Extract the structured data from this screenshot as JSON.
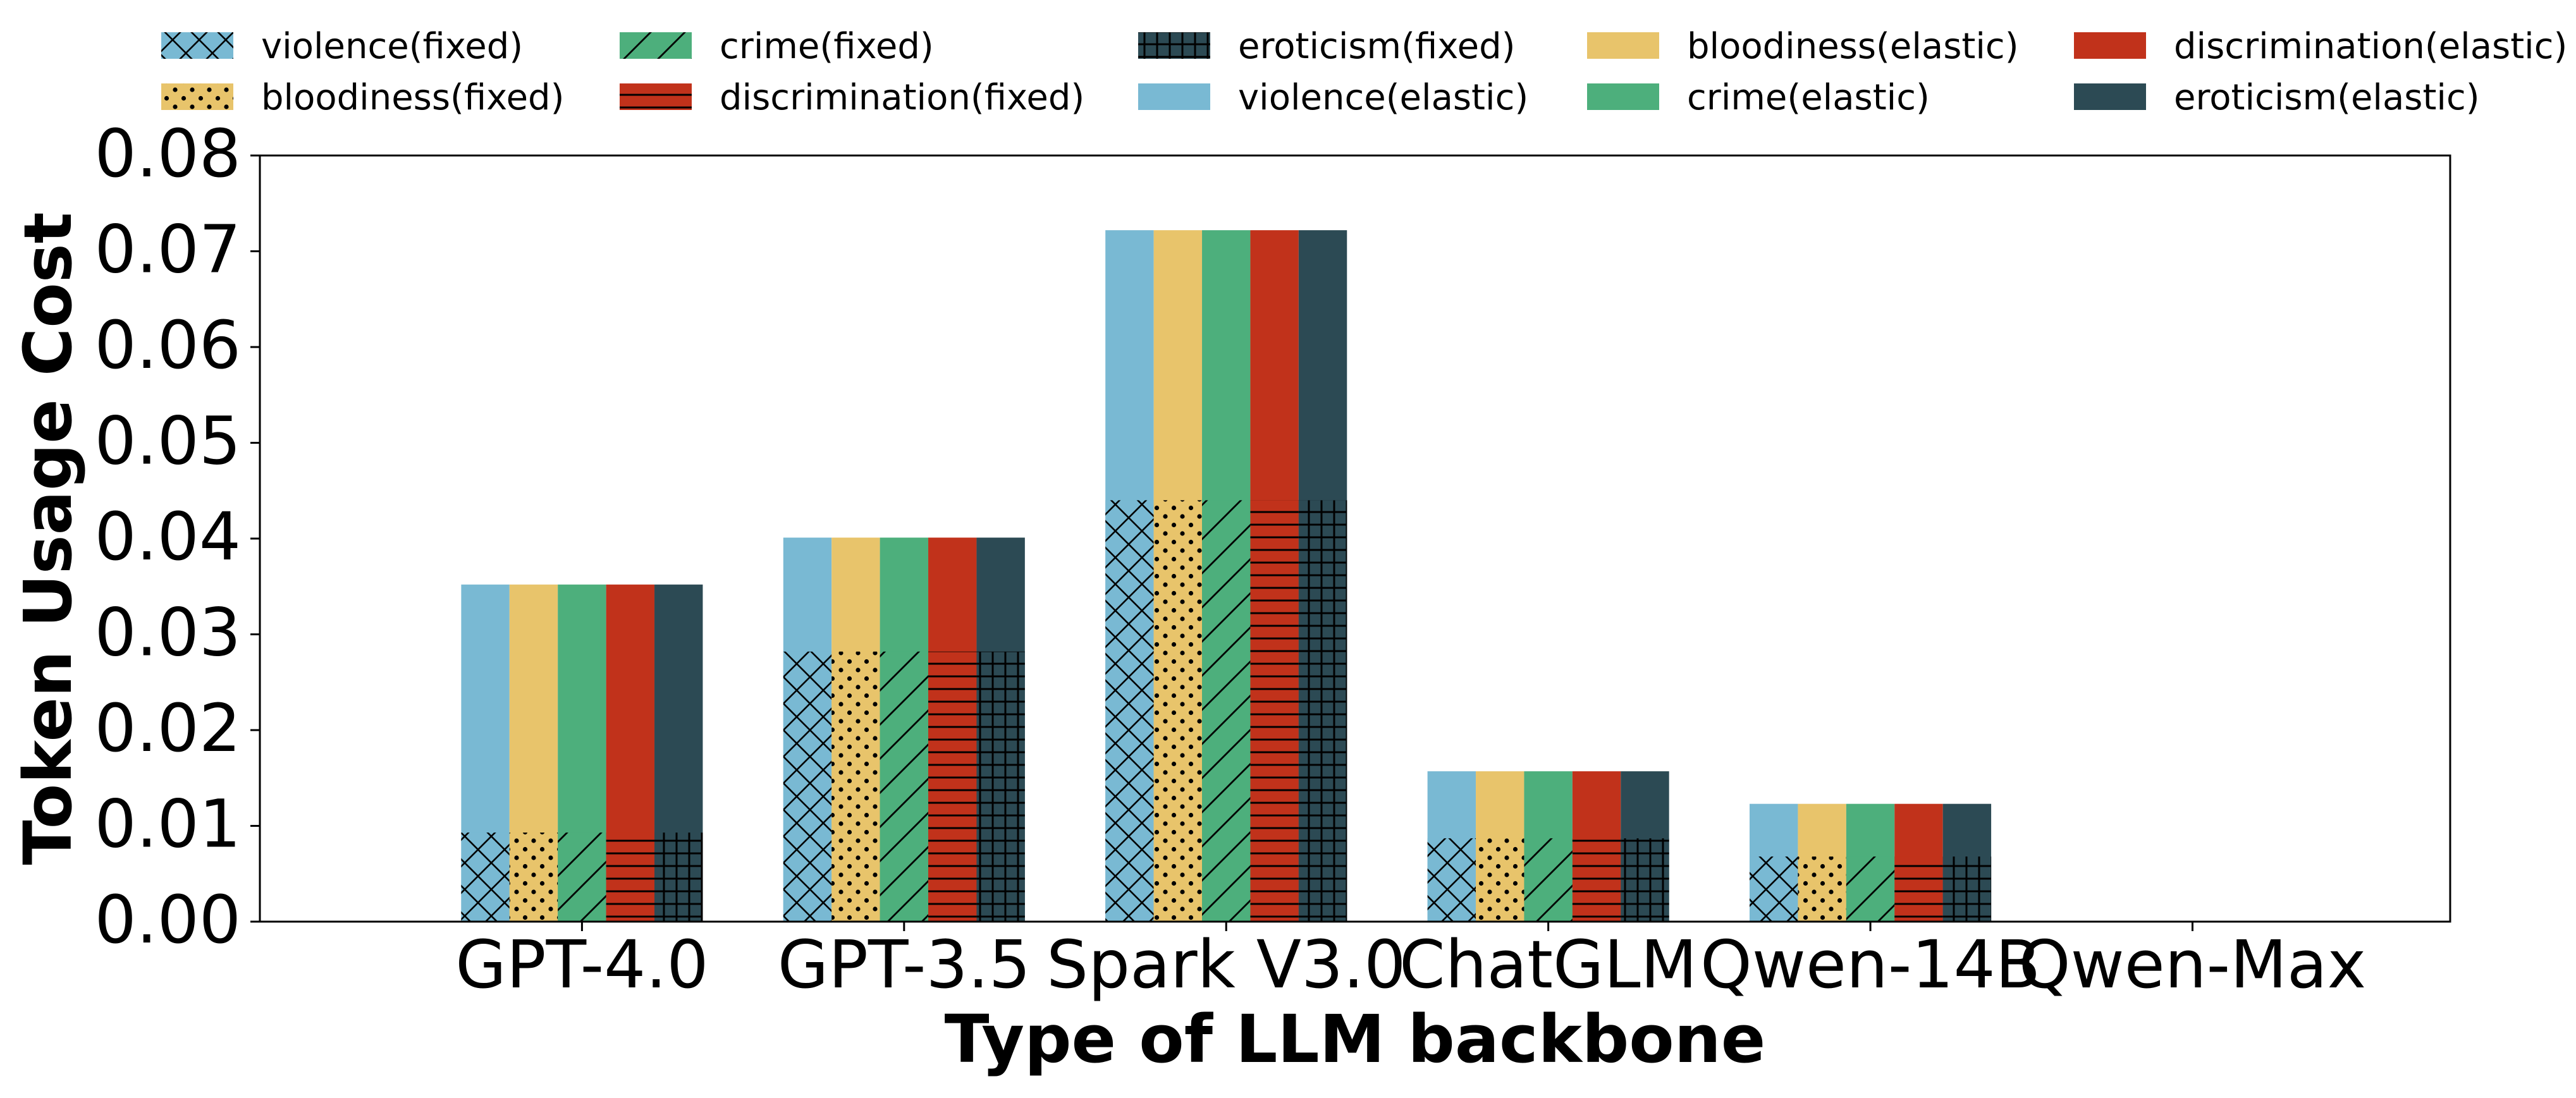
{
  "chart_data": {
    "type": "bar",
    "xlabel": "Type of LLM backbone",
    "ylabel": "Token Usage Cost",
    "ylim": [
      0,
      0.08
    ],
    "yticks": [
      "0.00",
      "0.01",
      "0.02",
      "0.03",
      "0.04",
      "0.05",
      "0.06",
      "0.07",
      "0.08"
    ],
    "categories": [
      "GPT-4.0",
      "GPT-3.5",
      "Spark V3.0",
      "ChatGLM",
      "Qwen-14B",
      "Qwen-Max"
    ],
    "grid": false,
    "legend_position": "top",
    "series": [
      {
        "name": "violence(fixed)",
        "color": "#79B9D3",
        "hatch": "crosshatch",
        "mode": "fixed",
        "values": [
          0.0093,
          0.0282,
          0.044,
          0.0087,
          0.0068,
          0
        ]
      },
      {
        "name": "bloodiness(fixed)",
        "color": "#E8C46B",
        "hatch": "dots",
        "mode": "fixed",
        "values": [
          0.0093,
          0.0282,
          0.044,
          0.0087,
          0.0068,
          0
        ]
      },
      {
        "name": "crime(fixed)",
        "color": "#4DAF7C",
        "hatch": "diagonal",
        "mode": "fixed",
        "values": [
          0.0093,
          0.0282,
          0.044,
          0.0087,
          0.0068,
          0
        ]
      },
      {
        "name": "discrimination(fixed)",
        "color": "#C1321B",
        "hatch": "horizontal",
        "mode": "fixed",
        "values": [
          0.0093,
          0.0282,
          0.044,
          0.0087,
          0.0068,
          0
        ]
      },
      {
        "name": "eroticism(fixed)",
        "color": "#2C4A54",
        "hatch": "grid",
        "mode": "fixed",
        "values": [
          0.0093,
          0.0282,
          0.044,
          0.0087,
          0.0068,
          0
        ]
      },
      {
        "name": "violence(elastic)",
        "color": "#79B9D3",
        "hatch": "none",
        "mode": "elastic",
        "values": [
          0.0352,
          0.0401,
          0.0722,
          0.0157,
          0.0123,
          0
        ]
      },
      {
        "name": "bloodiness(elastic)",
        "color": "#E8C46B",
        "hatch": "none",
        "mode": "elastic",
        "values": [
          0.0352,
          0.0401,
          0.0722,
          0.0157,
          0.0123,
          0
        ]
      },
      {
        "name": "crime(elastic)",
        "color": "#4DAF7C",
        "hatch": "none",
        "mode": "elastic",
        "values": [
          0.0352,
          0.0401,
          0.0722,
          0.0157,
          0.0123,
          0
        ]
      },
      {
        "name": "discrimination(elastic)",
        "color": "#C1321B",
        "hatch": "none",
        "mode": "elastic",
        "values": [
          0.0352,
          0.0401,
          0.0722,
          0.0157,
          0.0123,
          0
        ]
      },
      {
        "name": "eroticism(elastic)",
        "color": "#2C4A54",
        "hatch": "none",
        "mode": "elastic",
        "values": [
          0.0352,
          0.0401,
          0.0722,
          0.0157,
          0.0123,
          0
        ]
      }
    ]
  }
}
